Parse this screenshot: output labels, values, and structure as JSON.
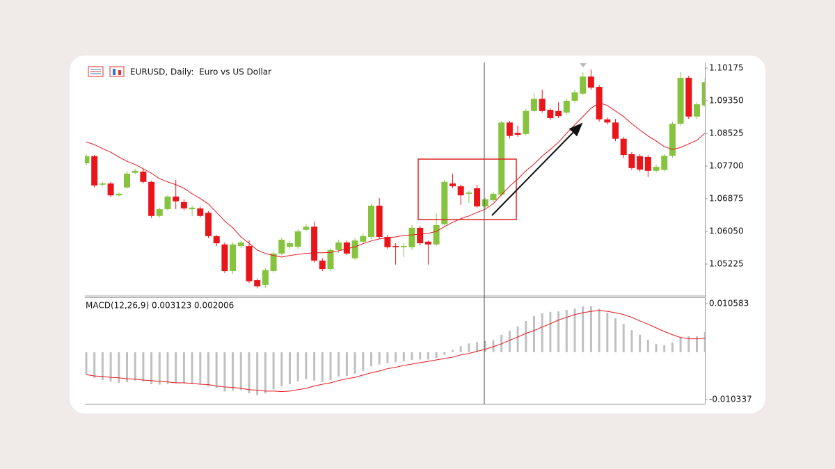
{
  "chart_data": [
    {
      "type": "candlestick",
      "title": "EURUSD, Daily:  Euro vs US Dollar",
      "up_color": "#86c440",
      "down_color": "#e8151b",
      "open": [
        1.0777,
        1.0795,
        1.0723,
        1.0726,
        1.0696,
        1.0716,
        1.0753,
        1.0756,
        1.073,
        1.0644,
        1.0661,
        1.0693,
        1.0679,
        1.0661,
        1.0663,
        1.0652,
        1.0593,
        1.0572,
        1.0505,
        1.0568,
        1.0568,
        1.0482,
        1.047,
        1.0505,
        1.0549,
        1.0566,
        1.0566,
        1.0609,
        1.0617,
        1.0531,
        1.051,
        1.0558,
        1.0577,
        1.0537,
        1.0579,
        1.0591,
        1.067,
        1.0591,
        1.0568,
        1.0565,
        1.0565,
        1.0614,
        1.0579,
        1.0572,
        1.0623,
        1.0726,
        1.0719,
        1.07,
        1.0714,
        1.0668,
        1.0684,
        1.0698,
        1.088,
        1.0854,
        1.0851,
        1.0909,
        1.094,
        1.0912,
        1.0909,
        1.0905,
        1.0935,
        1.0953,
        1.0996,
        1.097,
        1.0888,
        1.088,
        1.0839,
        1.08,
        1.0795,
        1.0793,
        1.0758,
        1.076,
        1.0796,
        1.0877,
        1.0993,
        1.0895,
        1.0923
      ],
      "high": [
        1.08,
        1.0798,
        1.073,
        1.073,
        1.0703,
        1.0758,
        1.0763,
        1.0763,
        1.0733,
        1.0665,
        1.0696,
        1.0735,
        1.0686,
        1.067,
        1.0668,
        1.0656,
        1.0596,
        1.0577,
        1.0577,
        1.0582,
        1.0582,
        1.0486,
        1.0512,
        1.0554,
        1.0589,
        1.058,
        1.061,
        1.0623,
        1.063,
        1.0537,
        1.0563,
        1.0584,
        1.0582,
        1.0588,
        1.06,
        1.0675,
        1.0689,
        1.0596,
        1.0575,
        1.0575,
        1.0621,
        1.0619,
        1.0582,
        1.0651,
        1.0735,
        1.0751,
        1.0723,
        1.0707,
        1.0723,
        1.0689,
        1.0705,
        1.0884,
        1.0884,
        1.0872,
        1.0914,
        1.0954,
        1.0963,
        1.0916,
        1.0931,
        1.094,
        1.0963,
        1.1007,
        1.1014,
        1.0975,
        1.0893,
        1.0889,
        1.0844,
        1.0805,
        1.08,
        1.0798,
        1.0774,
        1.08,
        1.0882,
        1.1007,
        1.0998,
        1.0931,
        1.0993
      ],
      "low": [
        1.0772,
        1.0716,
        1.0719,
        1.0691,
        1.0693,
        1.0712,
        1.0749,
        1.0726,
        1.0639,
        1.064,
        1.0658,
        1.0661,
        1.0658,
        1.0644,
        1.064,
        1.0588,
        1.0568,
        1.05,
        1.0498,
        1.0563,
        1.0475,
        1.0461,
        1.0463,
        1.05,
        1.0545,
        1.0561,
        1.0561,
        1.0605,
        1.0526,
        1.0505,
        1.0505,
        1.0551,
        1.0545,
        1.0533,
        1.0575,
        1.0586,
        1.0586,
        1.0561,
        1.0521,
        1.054,
        1.0558,
        1.057,
        1.0521,
        1.0568,
        1.0619,
        1.0714,
        1.0672,
        1.0677,
        1.0665,
        1.0663,
        1.0679,
        1.0693,
        1.084,
        1.0844,
        1.0847,
        1.0905,
        1.0905,
        1.0886,
        1.0891,
        1.09,
        1.093,
        1.0949,
        1.0963,
        1.0882,
        1.0875,
        1.0833,
        1.0791,
        1.076,
        1.0756,
        1.0742,
        1.0754,
        1.0756,
        1.0791,
        1.0872,
        1.0889,
        1.0889,
        1.0919
      ],
      "close": [
        1.0795,
        1.0721,
        1.0726,
        1.0696,
        1.07,
        1.0751,
        1.0758,
        1.073,
        1.0644,
        1.0661,
        1.0693,
        1.0681,
        1.0663,
        1.0665,
        1.0644,
        1.0593,
        1.0575,
        1.0505,
        1.0572,
        1.0577,
        1.0479,
        1.0466,
        1.0507,
        1.0549,
        1.0584,
        1.0575,
        1.0605,
        1.0617,
        1.0531,
        1.051,
        1.0558,
        1.0577,
        1.0549,
        1.0582,
        1.0593,
        1.067,
        1.0591,
        1.0565,
        1.0565,
        1.0568,
        1.0614,
        1.0575,
        1.0572,
        1.0621,
        1.073,
        1.0719,
        1.0696,
        1.0703,
        1.0668,
        1.0686,
        1.07,
        1.088,
        1.0846,
        1.0849,
        1.0909,
        1.094,
        1.0909,
        1.0891,
        1.0896,
        1.0935,
        1.0956,
        1.0996,
        1.0968,
        1.0888,
        1.088,
        1.0839,
        1.0798,
        1.0765,
        1.0761,
        1.0758,
        1.0768,
        1.0796,
        1.0877,
        1.0993,
        1.0895,
        1.0926,
        1.0982
      ],
      "line": {
        "color": "#e8151b",
        "values": [
          1.0831,
          1.0824,
          1.0814,
          1.0805,
          1.0793,
          1.0782,
          1.0774,
          1.0763,
          1.0752,
          1.0738,
          1.073,
          1.0723,
          1.0714,
          1.07,
          1.0688,
          1.0674,
          1.0653,
          1.0631,
          1.0614,
          1.0591,
          1.0575,
          1.0558,
          1.0549,
          1.0544,
          1.054,
          1.0544,
          1.0547,
          1.0549,
          1.0551,
          1.0551,
          1.0552,
          1.0556,
          1.0561,
          1.0566,
          1.0574,
          1.0581,
          1.0586,
          1.0589,
          1.0591,
          1.0595,
          1.0596,
          1.0598,
          1.06,
          1.0605,
          1.0617,
          1.0628,
          1.0637,
          1.0644,
          1.0653,
          1.0661,
          1.0675,
          1.0698,
          1.0719,
          1.0737,
          1.0758,
          1.0775,
          1.0795,
          1.0812,
          1.083,
          1.0853,
          1.0874,
          1.0895,
          1.0916,
          1.093,
          1.0923,
          1.0909,
          1.0895,
          1.0877,
          1.0861,
          1.0846,
          1.0833,
          1.0819,
          1.0812,
          1.0817,
          1.0826,
          1.0835,
          1.0853
        ]
      },
      "ylim": [
        1.04418,
        1.10315
      ],
      "yticks": [
        1.10175,
        {
          "value": 1.0935,
          "label": "1.09350"
        },
        1.08525,
        {
          "value": 1.077,
          "label": "1.07700"
        },
        1.06875,
        {
          "value": 1.0605,
          "label": "1.06050"
        },
        1.05225
      ]
    },
    {
      "type": "macd",
      "title": "MACD(12,26,9) 0.003123 0.002006",
      "histogram": {
        "color": "#c0c0c0",
        "values": [
          -0.0049,
          -0.0056,
          -0.0061,
          -0.0064,
          -0.0067,
          -0.0065,
          -0.0062,
          -0.0064,
          -0.007,
          -0.0071,
          -0.007,
          -0.0068,
          -0.0068,
          -0.007,
          -0.0071,
          -0.0075,
          -0.0078,
          -0.0086,
          -0.0084,
          -0.0083,
          -0.009,
          -0.0094,
          -0.009,
          -0.0081,
          -0.0075,
          -0.007,
          -0.0064,
          -0.0059,
          -0.0062,
          -0.0065,
          -0.0061,
          -0.0053,
          -0.0052,
          -0.0047,
          -0.0041,
          -0.0031,
          -0.0027,
          -0.0024,
          -0.0022,
          -0.002,
          -0.0017,
          -0.0016,
          -0.0016,
          -0.0013,
          -0.0006,
          0.0005,
          0.0013,
          0.0019,
          0.0022,
          0.0024,
          0.0026,
          0.0038,
          0.0047,
          0.0056,
          0.0068,
          0.0079,
          0.0085,
          0.0088,
          0.0089,
          0.0092,
          0.0095,
          0.01,
          0.01,
          0.0095,
          0.0086,
          0.0074,
          0.0062,
          0.0048,
          0.0038,
          0.0027,
          0.0018,
          0.0015,
          0.0021,
          0.0033,
          0.0035,
          0.0035,
          0.0044
        ]
      },
      "signal": {
        "color": "#e8151b",
        "values": [
          -0.0049,
          -0.0052,
          -0.0053,
          -0.0055,
          -0.0056,
          -0.0058,
          -0.0059,
          -0.0061,
          -0.0062,
          -0.0064,
          -0.0065,
          -0.0067,
          -0.0067,
          -0.0068,
          -0.007,
          -0.0071,
          -0.0074,
          -0.0076,
          -0.0077,
          -0.0079,
          -0.0082,
          -0.0083,
          -0.0085,
          -0.0085,
          -0.0086,
          -0.0085,
          -0.0082,
          -0.0079,
          -0.0074,
          -0.007,
          -0.0067,
          -0.0062,
          -0.0058,
          -0.0055,
          -0.005,
          -0.0045,
          -0.0041,
          -0.0036,
          -0.0033,
          -0.0029,
          -0.0026,
          -0.0023,
          -0.002,
          -0.0017,
          -0.0014,
          -0.0011,
          -0.0006,
          -0.0003,
          0.0002,
          0.0006,
          0.0012,
          0.0018,
          0.0026,
          0.0033,
          0.0041,
          0.0047,
          0.0055,
          0.0062,
          0.007,
          0.0076,
          0.0082,
          0.0086,
          0.0089,
          0.0091,
          0.0089,
          0.0086,
          0.0082,
          0.0076,
          0.0068,
          0.0061,
          0.0053,
          0.0045,
          0.0038,
          0.0032,
          0.0029,
          0.0029,
          0.003
        ]
      },
      "ylim": [
        -0.0114,
        0.01195
      ],
      "yticks": [
        0.010583,
        -0.010337
      ]
    }
  ]
}
